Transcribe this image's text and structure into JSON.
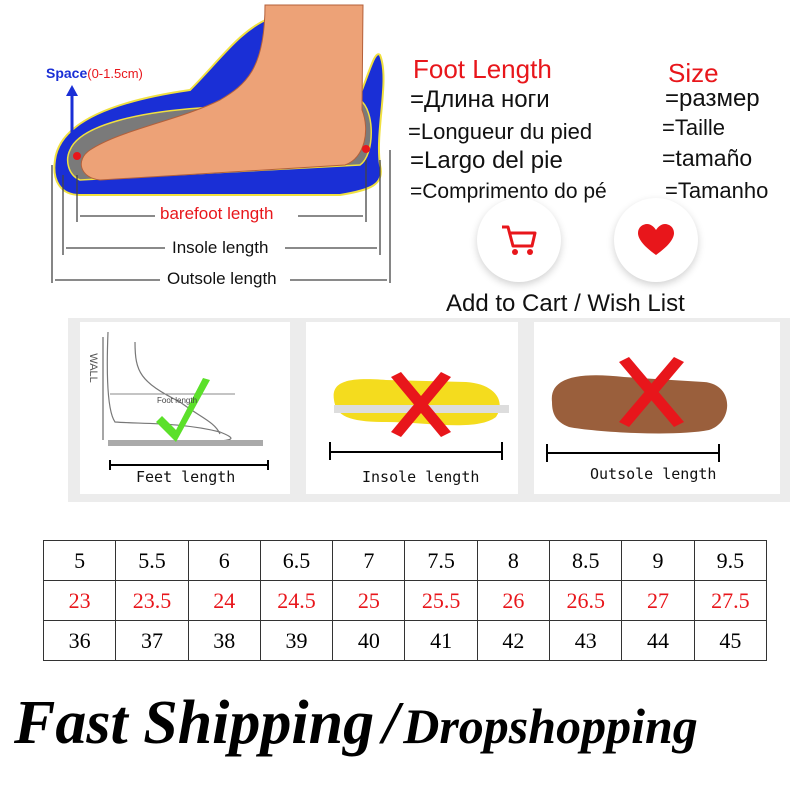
{
  "diagram": {
    "space_label": "Space",
    "space_range": "(0-1.5cm)",
    "barefoot_label": "barefoot length",
    "insole_label": "Insole length",
    "outsole_label": "Outsole length"
  },
  "foot_length": {
    "title": "Foot Length",
    "translations": [
      "=Длина ноги",
      "=Longueur du pied",
      "=Largo del pie",
      "=Comprimento do pé"
    ]
  },
  "size": {
    "title": "Size",
    "translations": [
      "=размер",
      "=Taille",
      "=tamaño",
      "=Tamanho"
    ]
  },
  "actions": {
    "cart_icon": "shopping-cart-icon",
    "wish_icon": "heart-icon",
    "label": "Add to Cart / Wish List"
  },
  "panels": [
    {
      "label": "Feet length",
      "wall": "WALL",
      "inner": "Foot length",
      "mark": "check"
    },
    {
      "label": "Insole length",
      "mark": "cross"
    },
    {
      "label": "Outsole length",
      "mark": "cross"
    }
  ],
  "size_table": {
    "rows": [
      [
        "5",
        "5.5",
        "6",
        "6.5",
        "7",
        "7.5",
        "8",
        "8.5",
        "9",
        "9.5"
      ],
      [
        "23",
        "23.5",
        "24",
        "24.5",
        "25",
        "25.5",
        "26",
        "26.5",
        "27",
        "27.5"
      ],
      [
        "36",
        "37",
        "38",
        "39",
        "40",
        "41",
        "42",
        "43",
        "44",
        "45"
      ]
    ]
  },
  "footer": {
    "part1": "Fast Shipping",
    "separator": "/",
    "part2": "Dropshopping"
  },
  "colors": {
    "accent_red": "#e8161b",
    "shoe_blue": "#1a2fd6",
    "check_green": "#5be02a"
  }
}
